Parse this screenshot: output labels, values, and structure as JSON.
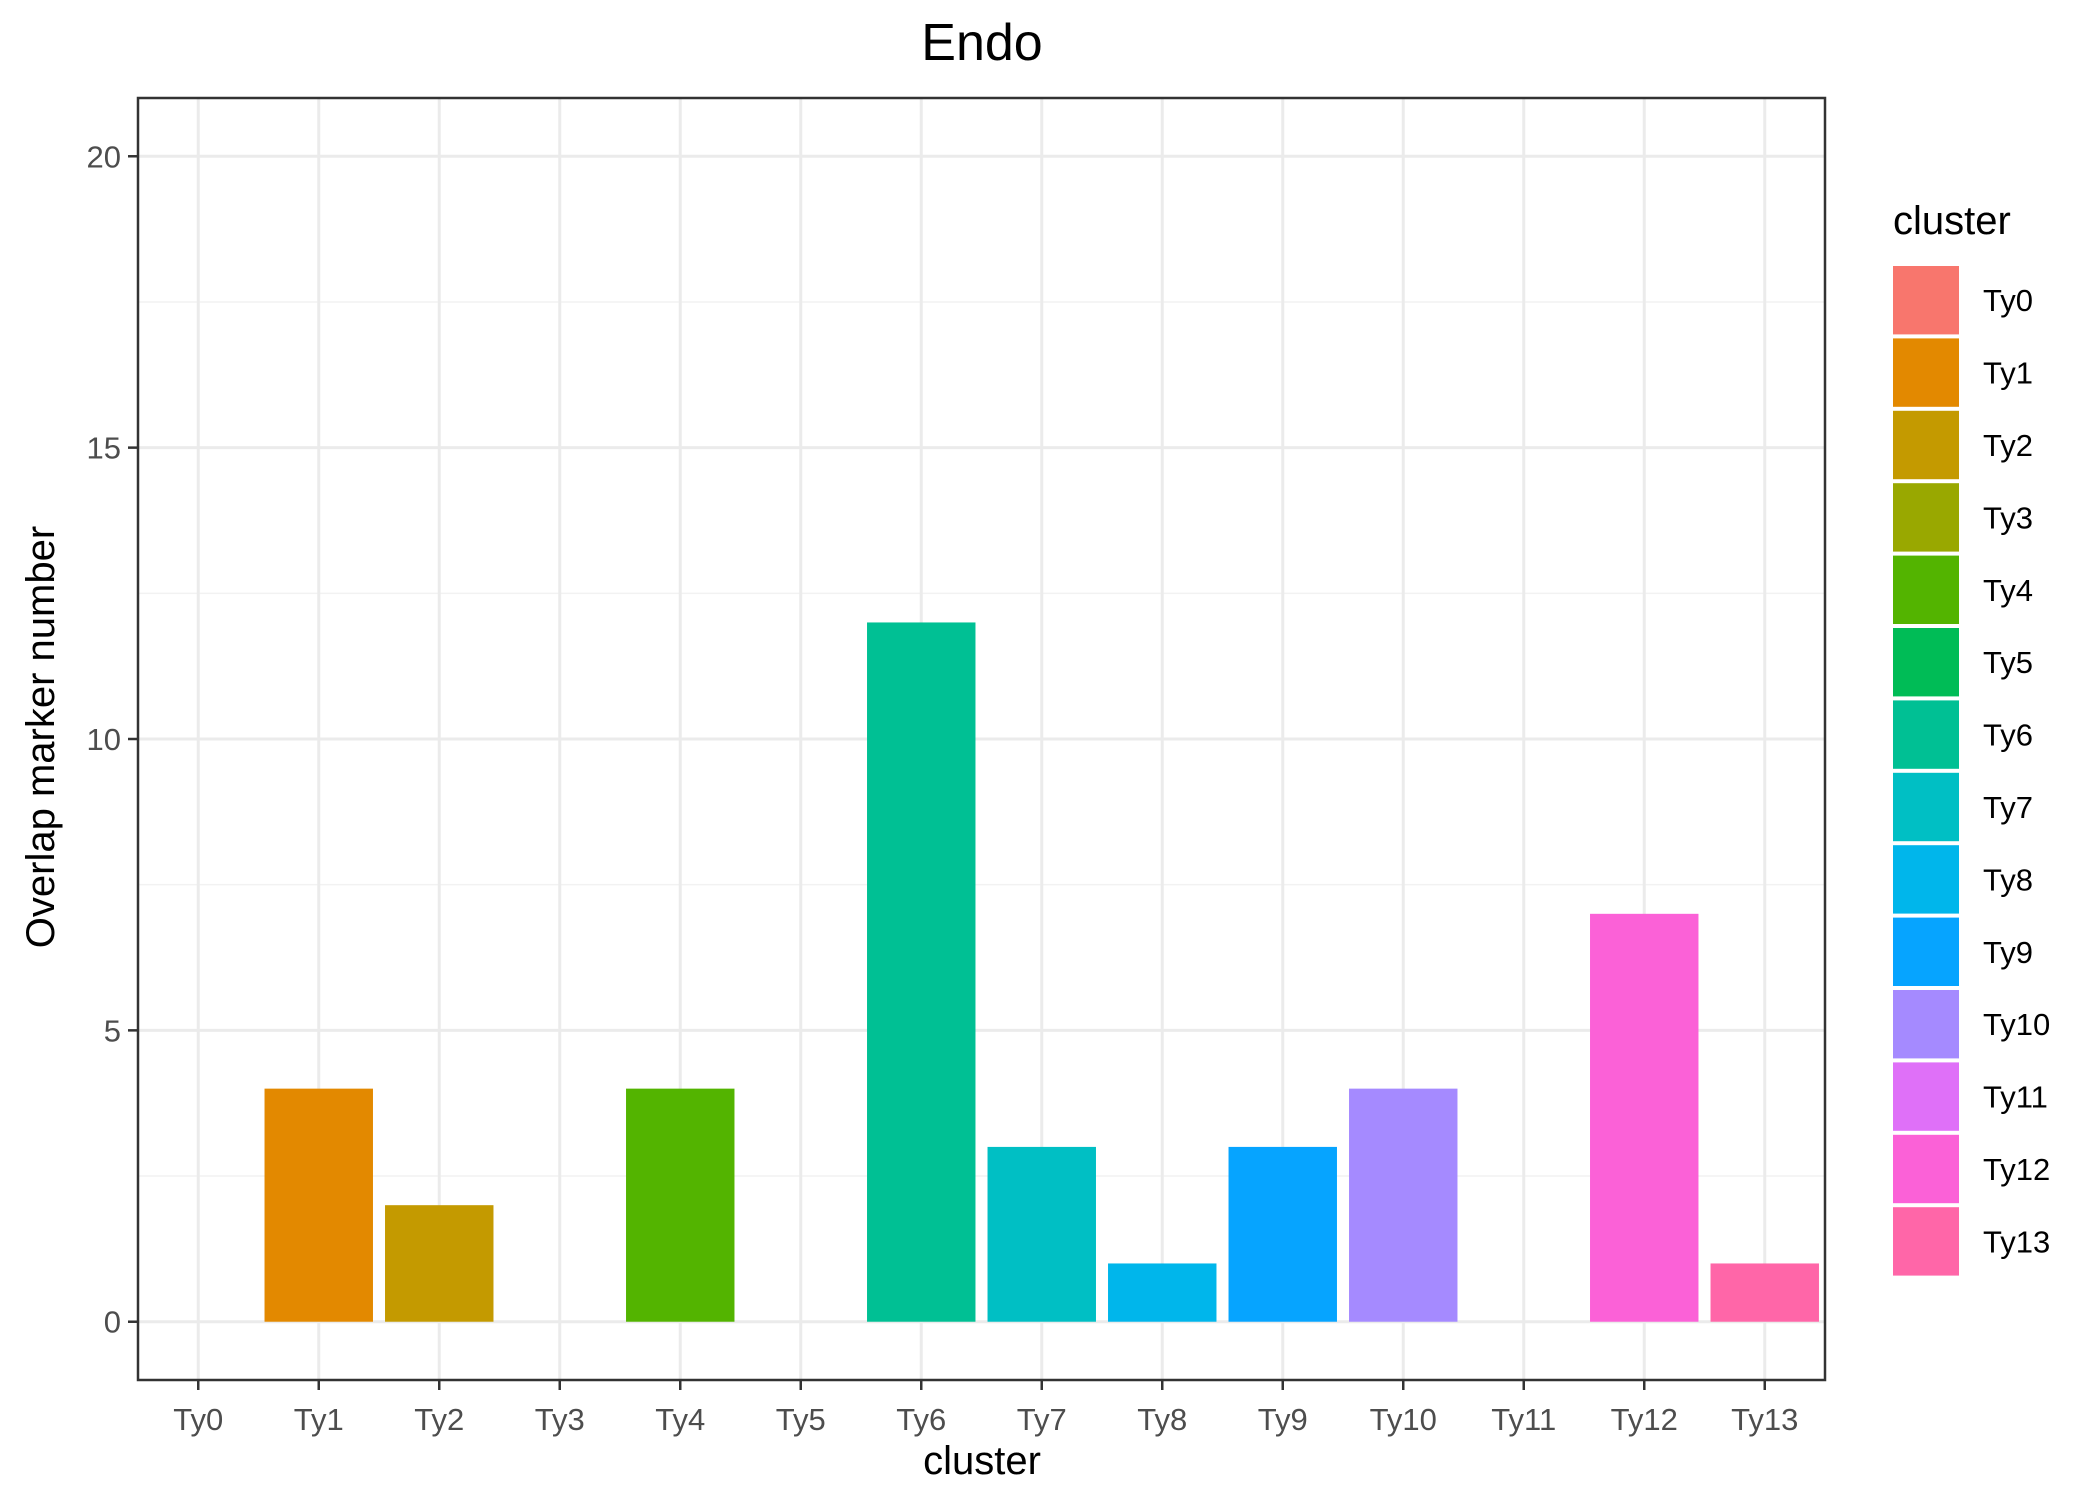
{
  "chart_data": {
    "type": "bar",
    "title": "Endo",
    "xlabel": "cluster",
    "ylabel": "Overlap marker number",
    "categories": [
      "Ty0",
      "Ty1",
      "Ty2",
      "Ty3",
      "Ty4",
      "Ty5",
      "Ty6",
      "Ty7",
      "Ty8",
      "Ty9",
      "Ty10",
      "Ty11",
      "Ty12",
      "Ty13"
    ],
    "values": [
      0,
      4,
      2,
      0,
      4,
      0,
      12,
      3,
      1,
      3,
      4,
      0,
      7,
      1
    ],
    "colors": [
      "#F8766D",
      "#E38900",
      "#C49A00",
      "#99A800",
      "#53B400",
      "#00BC56",
      "#00C094",
      "#00BFC4",
      "#00B6EB",
      "#06A4FF",
      "#A58AFF",
      "#DF70F8",
      "#FB61D7",
      "#FF66A8"
    ],
    "ylim": [
      -1,
      21
    ],
    "yticks": [
      0,
      5,
      10,
      15,
      20
    ],
    "grid": true,
    "legend": {
      "title": "cluster",
      "placement": "right"
    }
  }
}
